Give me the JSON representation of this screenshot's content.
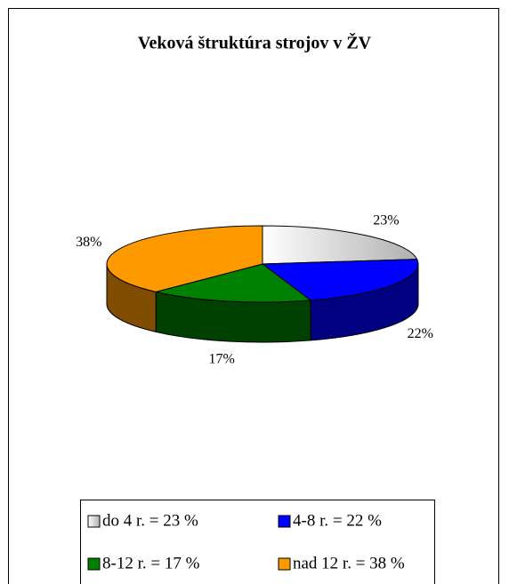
{
  "chart_data": {
    "type": "pie3d",
    "title": "Veková štruktúra strojov v ŽV",
    "categories": [
      "do 4 r. = 23 %",
      "4-8 r. = 22 %",
      "8-12 r. = 17 %",
      "nad 12 r. = 38 %"
    ],
    "values": [
      23,
      22,
      17,
      38
    ],
    "value_labels": [
      "23%",
      "22%",
      "17%",
      "38%"
    ],
    "colors": [
      "#b8b8b8",
      "#0000ff",
      "#008000",
      "#ff9900"
    ],
    "side_colors": [
      "#808080",
      "#000080",
      "#004000",
      "#804c00"
    ],
    "legend": "bottom"
  }
}
